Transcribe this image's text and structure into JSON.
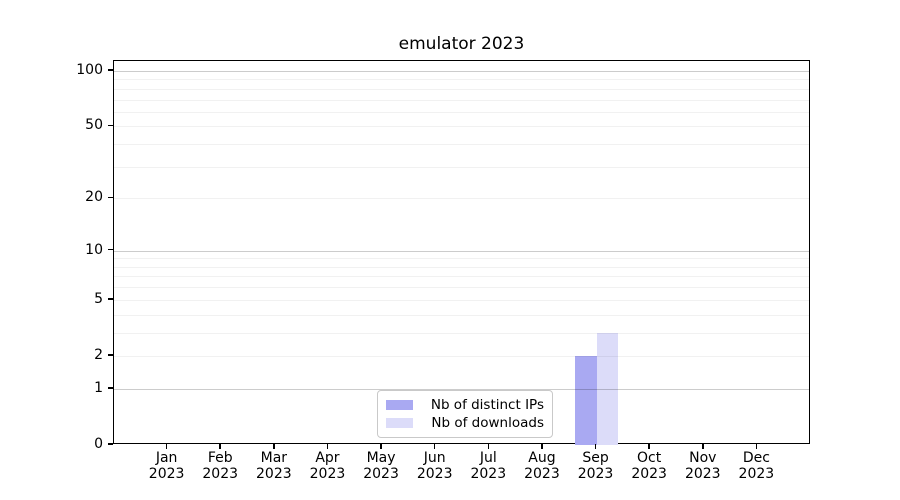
{
  "title": "emulator 2023",
  "colors": {
    "ips_bar": "#a9a9f2",
    "downloads_bar": "#dcdcf9",
    "grid_major": "rgba(0,0,0,0.20)",
    "grid_minor": "rgba(0,0,0,0.055)",
    "axis": "#000000",
    "legend_border": "#c9c9c9"
  },
  "legend": {
    "items": [
      {
        "label": "Nb of distinct IPs",
        "color_key": "ips_bar"
      },
      {
        "label": "Nb of downloads",
        "color_key": "downloads_bar"
      }
    ],
    "position": "lower center"
  },
  "chart_data": {
    "type": "bar",
    "title": "emulator 2023",
    "categories": [
      "Jan 2023",
      "Feb 2023",
      "Mar 2023",
      "Apr 2023",
      "May 2023",
      "Jun 2023",
      "Jul 2023",
      "Aug 2023",
      "Sep 2023",
      "Oct 2023",
      "Nov 2023",
      "Dec 2023"
    ],
    "series": [
      {
        "name": "Nb of distinct IPs",
        "color_key": "ips_bar",
        "values": [
          0,
          0,
          0,
          0,
          0,
          0,
          0,
          0,
          2,
          0,
          0,
          0
        ]
      },
      {
        "name": "Nb of downloads",
        "color_key": "downloads_bar",
        "values": [
          0,
          0,
          0,
          0,
          0,
          0,
          0,
          0,
          3,
          0,
          0,
          0
        ]
      }
    ],
    "xlabel": "",
    "ylabel": "",
    "yscale": "log1p",
    "ylim": [
      0,
      100
    ],
    "y_ticks": [
      0,
      1,
      2,
      5,
      10,
      20,
      50,
      100
    ],
    "y_major_gridlines": [
      1,
      10,
      100
    ],
    "y_minor_gridlines": [
      2,
      3,
      4,
      5,
      6,
      7,
      8,
      9,
      20,
      30,
      40,
      50,
      60,
      70,
      80,
      90
    ],
    "grid": "horizontal only",
    "legend_position": "lower center"
  }
}
